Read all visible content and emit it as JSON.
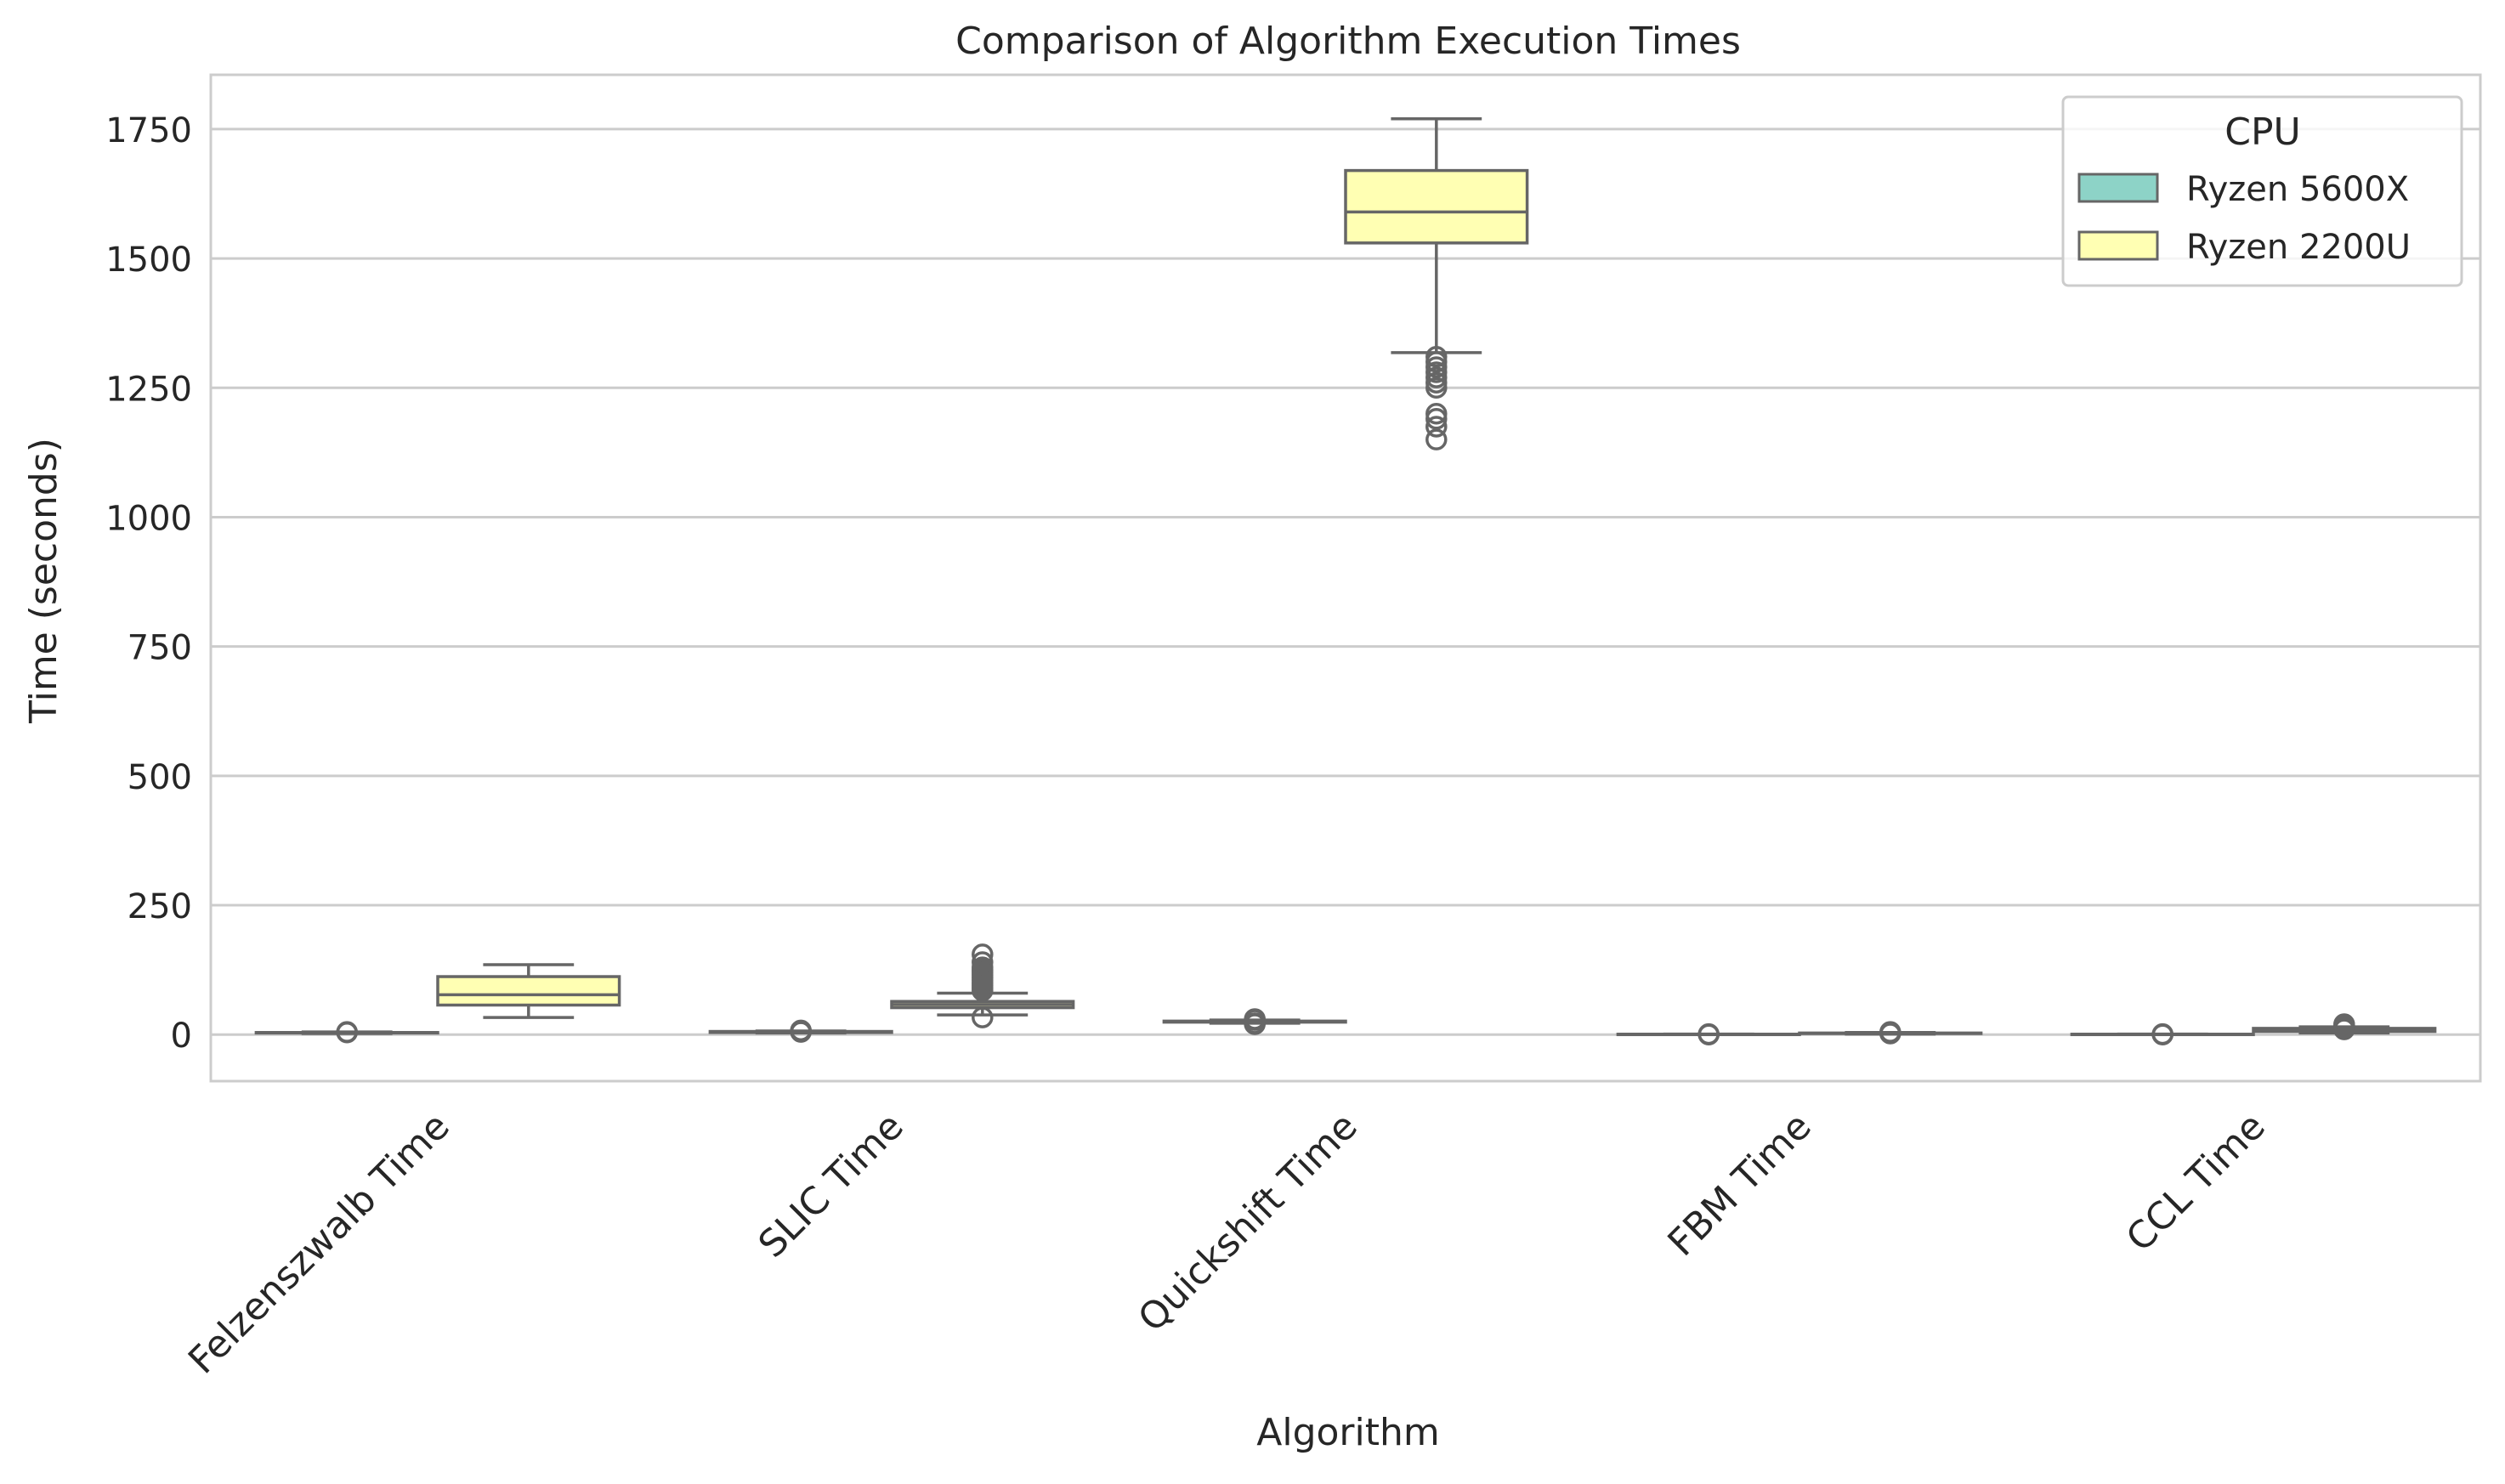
{
  "chart_data": {
    "type": "box",
    "title": "Comparison of Algorithm Execution Times",
    "xlabel": "Algorithm",
    "ylabel": "Time (seconds)",
    "categories": [
      "Felzenszwalb Time",
      "SLIC Time",
      "Quickshift Time",
      "FBM Time",
      "CCL Time"
    ],
    "yticks": [
      0,
      250,
      500,
      750,
      1000,
      1250,
      1500,
      1750
    ],
    "ytick_labels": [
      "0",
      "250",
      "500",
      "750",
      "1000",
      "1250",
      "1500",
      "1750"
    ],
    "ylim": [
      -90,
      1855
    ],
    "grid": true,
    "legend": {
      "title": "CPU",
      "placement": "top-right"
    },
    "series": [
      {
        "name": "Ryzen 5600X",
        "color": "#8dd3c7",
        "boxes": [
          {
            "category": "Felzenszwalb Time",
            "whislo": 2,
            "q1": 3,
            "med": 3.5,
            "q3": 4,
            "whishi": 5,
            "fliers": [
              4,
              5
            ]
          },
          {
            "category": "SLIC Time",
            "whislo": 3,
            "q1": 4,
            "med": 5,
            "q3": 6,
            "whishi": 7,
            "fliers": [
              5,
              6,
              8
            ]
          },
          {
            "category": "Quickshift Time",
            "whislo": 22,
            "q1": 24,
            "med": 25,
            "q3": 26,
            "whishi": 28,
            "fliers": [
              20,
              22,
              28,
              30
            ]
          },
          {
            "category": "FBM Time",
            "whislo": 0,
            "q1": 0.3,
            "med": 0.5,
            "q3": 0.7,
            "whishi": 1,
            "fliers": [
              0,
              1
            ]
          },
          {
            "category": "CCL Time",
            "whislo": 0,
            "q1": 0.3,
            "med": 0.5,
            "q3": 0.7,
            "whishi": 1,
            "fliers": [
              0,
              1
            ]
          }
        ]
      },
      {
        "name": "Ryzen 2200U",
        "color": "#ffffb3",
        "boxes": [
          {
            "category": "Felzenszwalb Time",
            "whislo": 33,
            "q1": 57,
            "med": 77,
            "q3": 112,
            "whishi": 135,
            "fliers": []
          },
          {
            "category": "SLIC Time",
            "whislo": 38,
            "q1": 52,
            "med": 58,
            "q3": 64,
            "whishi": 80,
            "fliers": [
              33,
              85,
              90,
              95,
              100,
              105,
              110,
              115,
              120,
              125,
              130,
              140,
              155
            ]
          },
          {
            "category": "Quickshift Time",
            "whislo": 1318,
            "q1": 1530,
            "med": 1590,
            "q3": 1670,
            "whishi": 1770,
            "fliers": [
              1150,
              1175,
              1190,
              1200,
              1250,
              1260,
              1270,
              1280,
              1290,
              1300,
              1310
            ]
          },
          {
            "category": "FBM Time",
            "whislo": 1,
            "q1": 2,
            "med": 2.5,
            "q3": 3,
            "whishi": 4,
            "fliers": [
              2,
              3,
              5
            ]
          },
          {
            "category": "CCL Time",
            "whislo": 3,
            "q1": 6,
            "med": 8,
            "q3": 12,
            "whishi": 15,
            "fliers": [
              10,
              14,
              18,
              20
            ]
          }
        ]
      }
    ]
  }
}
